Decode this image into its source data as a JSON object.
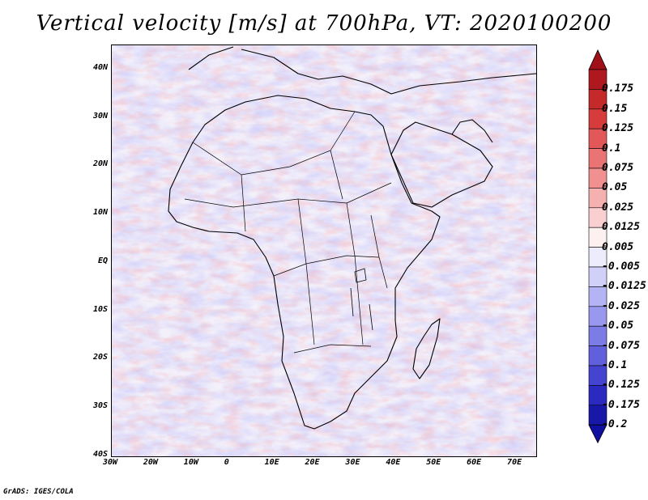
{
  "title": "Vertical velocity [m/s] at 700hPa, VT: 2020100200",
  "footer": "GrADS: IGES/COLA",
  "x_axis": {
    "ticks": [
      "30W",
      "20W",
      "10W",
      "0",
      "10E",
      "20E",
      "30E",
      "40E",
      "50E",
      "60E",
      "70E"
    ],
    "lon_values": [
      -30,
      -20,
      -10,
      0,
      10,
      20,
      30,
      40,
      50,
      60,
      70
    ],
    "range": [
      -30,
      75
    ]
  },
  "y_axis": {
    "ticks": [
      "40N",
      "30N",
      "20N",
      "10N",
      "EQ",
      "10S",
      "20S",
      "30S",
      "40S"
    ],
    "lat_values": [
      40,
      30,
      20,
      10,
      0,
      -10,
      -20,
      -30,
      -40
    ],
    "range": [
      -40,
      45
    ]
  },
  "colorbar": {
    "labels": [
      "0.175",
      "0.15",
      "0.125",
      "0.1",
      "0.075",
      "0.05",
      "0.025",
      "0.0125",
      "0.005",
      "-0.005",
      "-0.0125",
      "-0.025",
      "-0.05",
      "-0.075",
      "-0.1",
      "-0.125",
      "-0.175",
      "-0.2"
    ],
    "colors": [
      "#b01820",
      "#c42a2a",
      "#d63c3c",
      "#e25858",
      "#ea7474",
      "#f09090",
      "#f5b0b0",
      "#f9cfcf",
      "#fdf0f0",
      "#ececfc",
      "#d0d0f8",
      "#b4b4f4",
      "#9898ee",
      "#7c7ce6",
      "#6060dc",
      "#4444d0",
      "#2a2ac0",
      "#1818a8"
    ],
    "top_arrow_color": "#a01018",
    "bottom_arrow_color": "#1010a0"
  },
  "colors": {
    "background": "#ffffff",
    "coastline": "#000000"
  }
}
